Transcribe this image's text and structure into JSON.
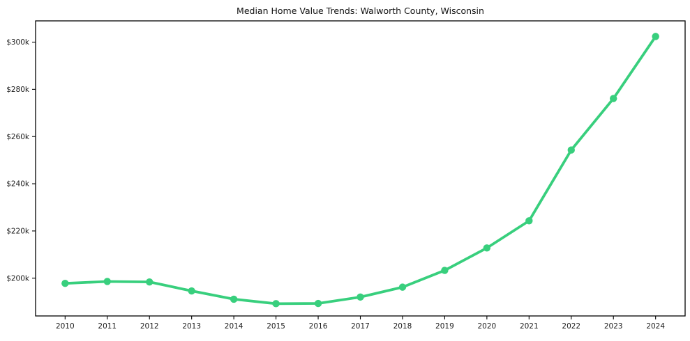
{
  "figure": {
    "background": "#ffffff"
  },
  "chart_data": {
    "type": "line",
    "title": "Median Home Value Trends: Walworth County, Wisconsin",
    "xlabel": "",
    "ylabel": "",
    "x": [
      2010,
      2011,
      2012,
      2013,
      2014,
      2015,
      2016,
      2017,
      2018,
      2019,
      2020,
      2021,
      2022,
      2023,
      2024
    ],
    "values": [
      197.8,
      198.6,
      198.4,
      194.6,
      191.1,
      189.2,
      189.3,
      192.0,
      196.2,
      203.3,
      212.8,
      224.3,
      254.3,
      276.1,
      302.4
    ],
    "value_unit": "thousand dollars",
    "y_ticks": [
      {
        "value": 200,
        "label": "$200k"
      },
      {
        "value": 220,
        "label": "$220k"
      },
      {
        "value": 240,
        "label": "$240k"
      },
      {
        "value": 260,
        "label": "$260k"
      },
      {
        "value": 280,
        "label": "$280k"
      },
      {
        "value": 300,
        "label": "$300k"
      }
    ],
    "ylim": [
      184,
      309
    ],
    "x_margin": 0.05,
    "grid": false,
    "legend": "none",
    "line_color": "#38cf7d",
    "axis_color": "#000000",
    "text_color": "#1a1a1a",
    "tick_font_size": 10.5,
    "line_width": 3.8,
    "marker_radius": 5.2
  }
}
